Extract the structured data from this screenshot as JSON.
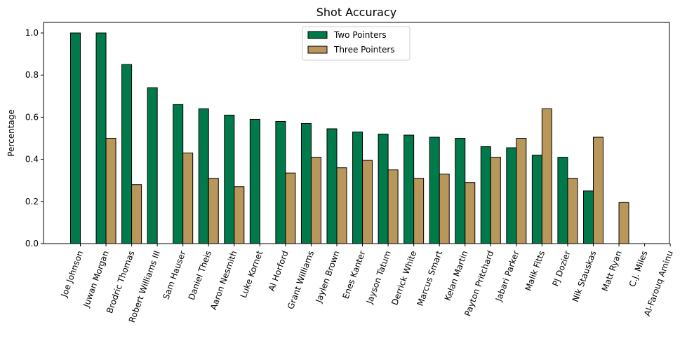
{
  "chart_data": {
    "type": "bar",
    "title": "Shot Accuracy",
    "xlabel": "",
    "ylabel": "Percentage",
    "ylim": [
      0,
      1.05
    ],
    "yticks": [
      "0.0",
      "0.2",
      "0.4",
      "0.6",
      "0.8",
      "1.0"
    ],
    "grid": false,
    "legend_position": "top-center",
    "categories": [
      "Joe Johnson",
      "Juwan Morgan",
      "Brodric Thomas",
      "Robert Williams III",
      "Sam Hauser",
      "Daniel Theis",
      "Aaron Nesmith",
      "Luke Kornet",
      "Al Horford",
      "Grant Williams",
      "Jaylen Brown",
      "Enes Kanter",
      "Jayson Tatum",
      "Derrick White",
      "Marcus Smart",
      "Kelan Martin",
      "Payton Pritchard",
      "Jabari Parker",
      "Malik Fitts",
      "PJ Dozier",
      "Nik Stauskas",
      "Matt Ryan",
      "C.J. Miles",
      "Al-Farouq Aminu"
    ],
    "series": [
      {
        "name": "Two Pointers",
        "color": "#007A4A",
        "values": [
          1.0,
          1.0,
          0.85,
          0.74,
          0.66,
          0.64,
          0.61,
          0.59,
          0.58,
          0.57,
          0.545,
          0.53,
          0.52,
          0.515,
          0.505,
          0.5,
          0.46,
          0.455,
          0.42,
          0.41,
          0.25,
          0.0,
          0.0,
          0.0
        ]
      },
      {
        "name": "Three Pointers",
        "color": "#B9975B",
        "values": [
          0.0,
          0.5,
          0.28,
          0.0,
          0.43,
          0.31,
          0.27,
          0.0,
          0.335,
          0.41,
          0.36,
          0.395,
          0.35,
          0.31,
          0.33,
          0.29,
          0.41,
          0.5,
          0.64,
          0.31,
          0.505,
          0.195,
          0.0,
          0.0
        ]
      }
    ]
  }
}
